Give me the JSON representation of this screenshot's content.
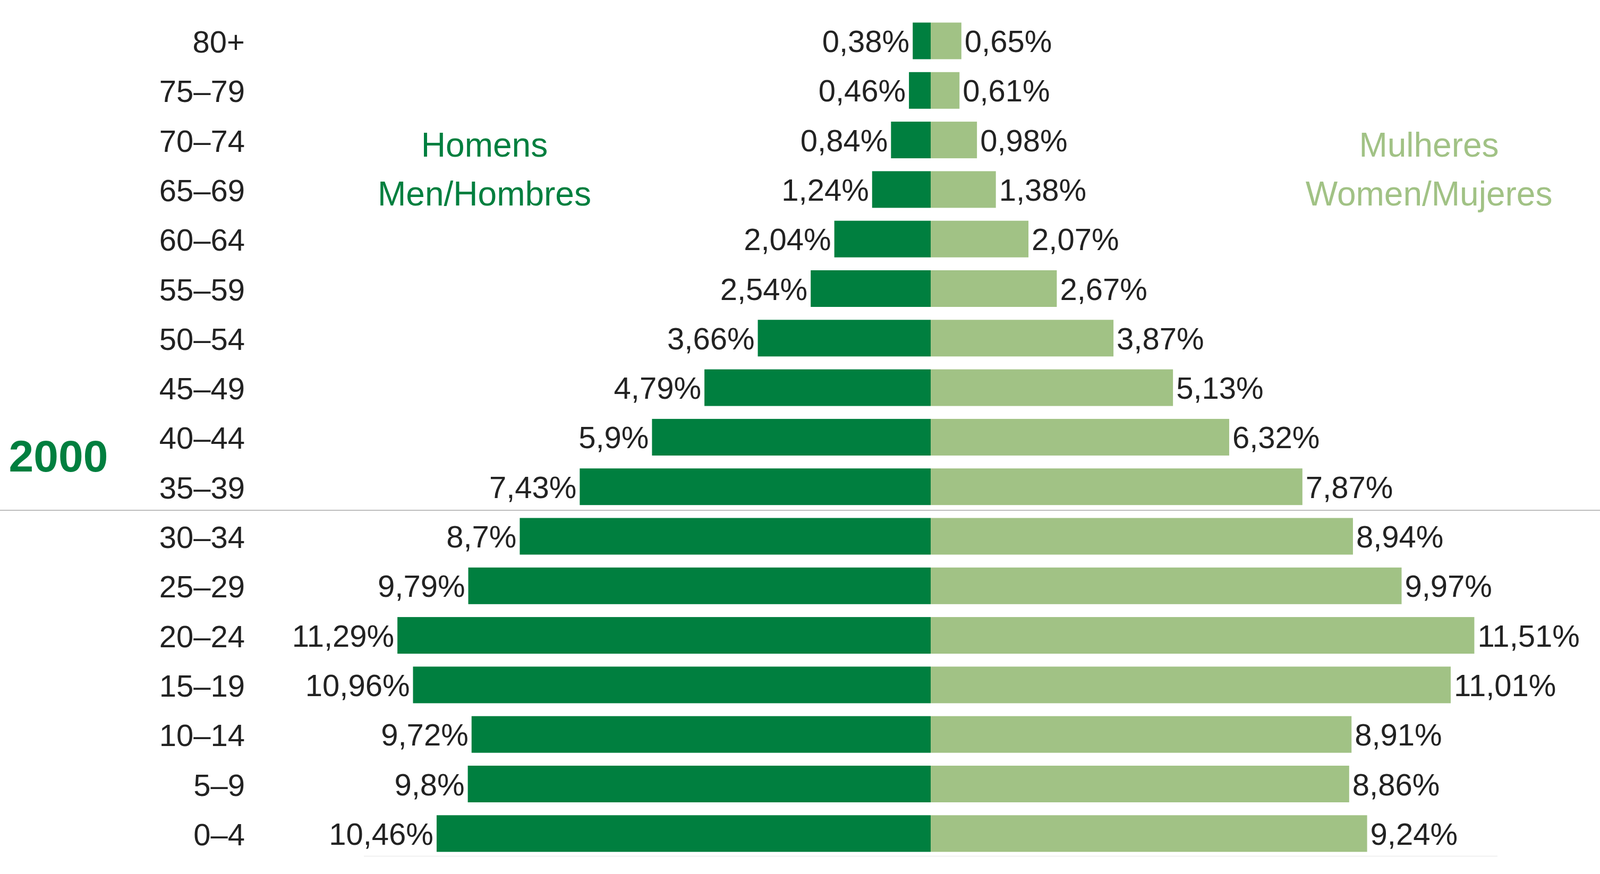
{
  "chart_data": {
    "type": "bar",
    "title": "2000",
    "orientation": "horizontal",
    "data_labels": true,
    "tick_labels": "y",
    "xlim": [
      0,
      12
    ],
    "categories": [
      "80+",
      "75–79",
      "70–74",
      "65–69",
      "60–64",
      "55–59",
      "50–54",
      "45–49",
      "40–44",
      "35–39",
      "30–34",
      "25–29",
      "20–24",
      "15–19",
      "10–14",
      "5–9",
      "0–4"
    ],
    "series": [
      {
        "name": "Homens Men/Hombres",
        "color": "#007f3f",
        "values": [
          0.38,
          0.46,
          0.84,
          1.24,
          2.04,
          2.54,
          3.66,
          4.79,
          5.9,
          7.43,
          8.7,
          9.79,
          11.29,
          10.96,
          9.72,
          9.8,
          10.46
        ],
        "value_labels": [
          "0,38%",
          "0,46%",
          "0,84%",
          "1,24%",
          "2,04%",
          "2,54%",
          "3,66%",
          "4,79%",
          "5,9%",
          "7,43%",
          "8,7%",
          "9,79%",
          "11,29%",
          "10,96%",
          "9,72%",
          "9,8%",
          "10,46%"
        ]
      },
      {
        "name": "Mulheres Women/Mujeres",
        "color": "#a1c285",
        "values": [
          0.65,
          0.61,
          0.98,
          1.38,
          2.07,
          2.67,
          3.87,
          5.13,
          6.32,
          7.87,
          8.94,
          9.97,
          11.51,
          11.01,
          8.91,
          8.86,
          9.24
        ],
        "value_labels": [
          "0,65%",
          "0,61%",
          "0,98%",
          "1,38%",
          "2,07%",
          "2,67%",
          "3,87%",
          "5,13%",
          "6,32%",
          "7,87%",
          "8,94%",
          "9,97%",
          "11,51%",
          "11,01%",
          "8,91%",
          "8,86%",
          "9,24%"
        ]
      }
    ]
  }
}
